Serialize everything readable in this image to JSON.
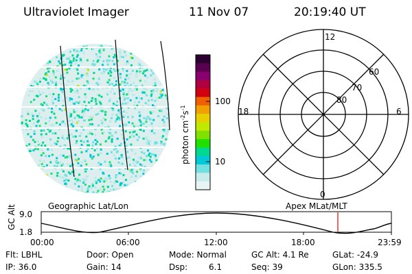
{
  "header": {
    "title": "Ultraviolet Imager",
    "date": "11 Nov 07",
    "time": "20:19:40 UT"
  },
  "colorbar": {
    "label": "photon cm",
    "label_sup1": "-2",
    "label_s": "s",
    "label_sup2": "-1",
    "ticks": [
      "100",
      "10"
    ],
    "colors": [
      "#2a0030",
      "#5a0050",
      "#8a0070",
      "#b00040",
      "#d00010",
      "#f06000",
      "#f0a000",
      "#e8d000",
      "#c0e800",
      "#80e000",
      "#20e000",
      "#00d890",
      "#00c8d8",
      "#70e0e0",
      "#c8ecec",
      "#e8f4f4"
    ]
  },
  "polar_plot": {
    "mlt_labels": {
      "top": "12",
      "left": "18",
      "right": "6",
      "bottom": "0"
    },
    "lat_labels": [
      "60",
      "70",
      "80"
    ]
  },
  "timeline": {
    "left_label": "Geographic Lat/Lon",
    "right_label": "Apex MLat/MLT",
    "y_axis_title": "GC Alt",
    "y_ticks": [
      "9.0",
      "1.8"
    ],
    "x_ticks": [
      "00:00",
      "06:00",
      "12:00",
      "18:00",
      "23:59"
    ],
    "marker_color": "#e00000"
  },
  "status": {
    "flt": "Flt: LBHL",
    "ip": "IP: 36.0",
    "door": "Door: Open",
    "gain": "Gain: 14",
    "mode": "Mode: Normal",
    "dsp_label": "Dsp:",
    "dsp_value": "6.1",
    "gc_alt": "GC Alt: 4.1 Re",
    "seq": "Seq: 39",
    "glat": "GLat: -24.9",
    "glon": "GLon: 335.5"
  }
}
